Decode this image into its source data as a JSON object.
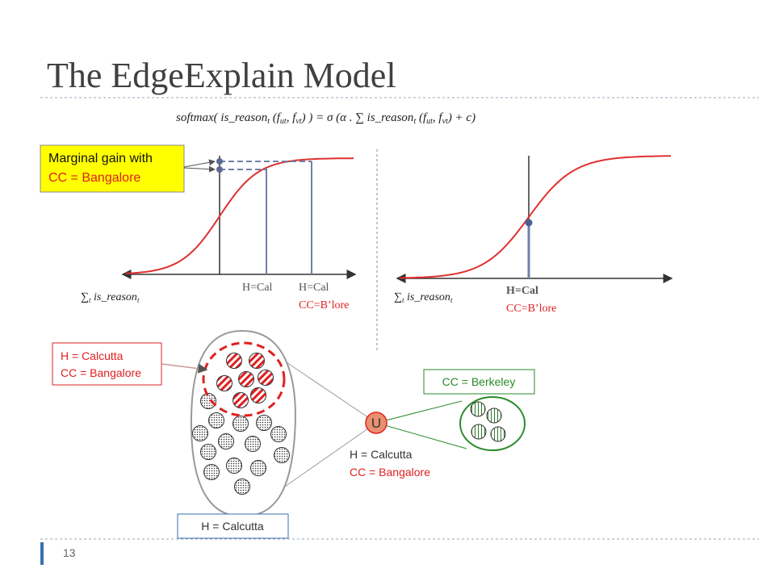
{
  "title": "The EdgeExplain Model",
  "formula": [
    "softmax( is_reason",
    "t",
    " (f",
    "ut",
    ", f",
    "vt",
    ") ) = σ (α . ∑ is_reason",
    "t",
    " (f",
    "ut",
    ", f",
    "vt",
    ") + c)"
  ],
  "left_plot": {
    "callout": [
      "Marginal gain with",
      "CC = Bangalore"
    ],
    "axis_label": [
      "∑",
      "t",
      " is_reason",
      "t"
    ],
    "labels": [
      "H=Cal",
      "H=Cal",
      "CC=B’lore"
    ]
  },
  "right_plot": {
    "axis_label": [
      "∑",
      "t",
      " is_reason",
      "t"
    ],
    "labels": [
      "H=Cal",
      "CC=B’lore"
    ]
  },
  "diagram": {
    "cluster_box": [
      "H = Calcutta",
      "CC = Bangalore"
    ],
    "berkeley_box": "CC = Berkeley",
    "user": "U",
    "user_labels": [
      "H = Calcutta",
      "CC = Bangalore"
    ],
    "group_box": "H = Calcutta"
  },
  "page_number": "13"
}
